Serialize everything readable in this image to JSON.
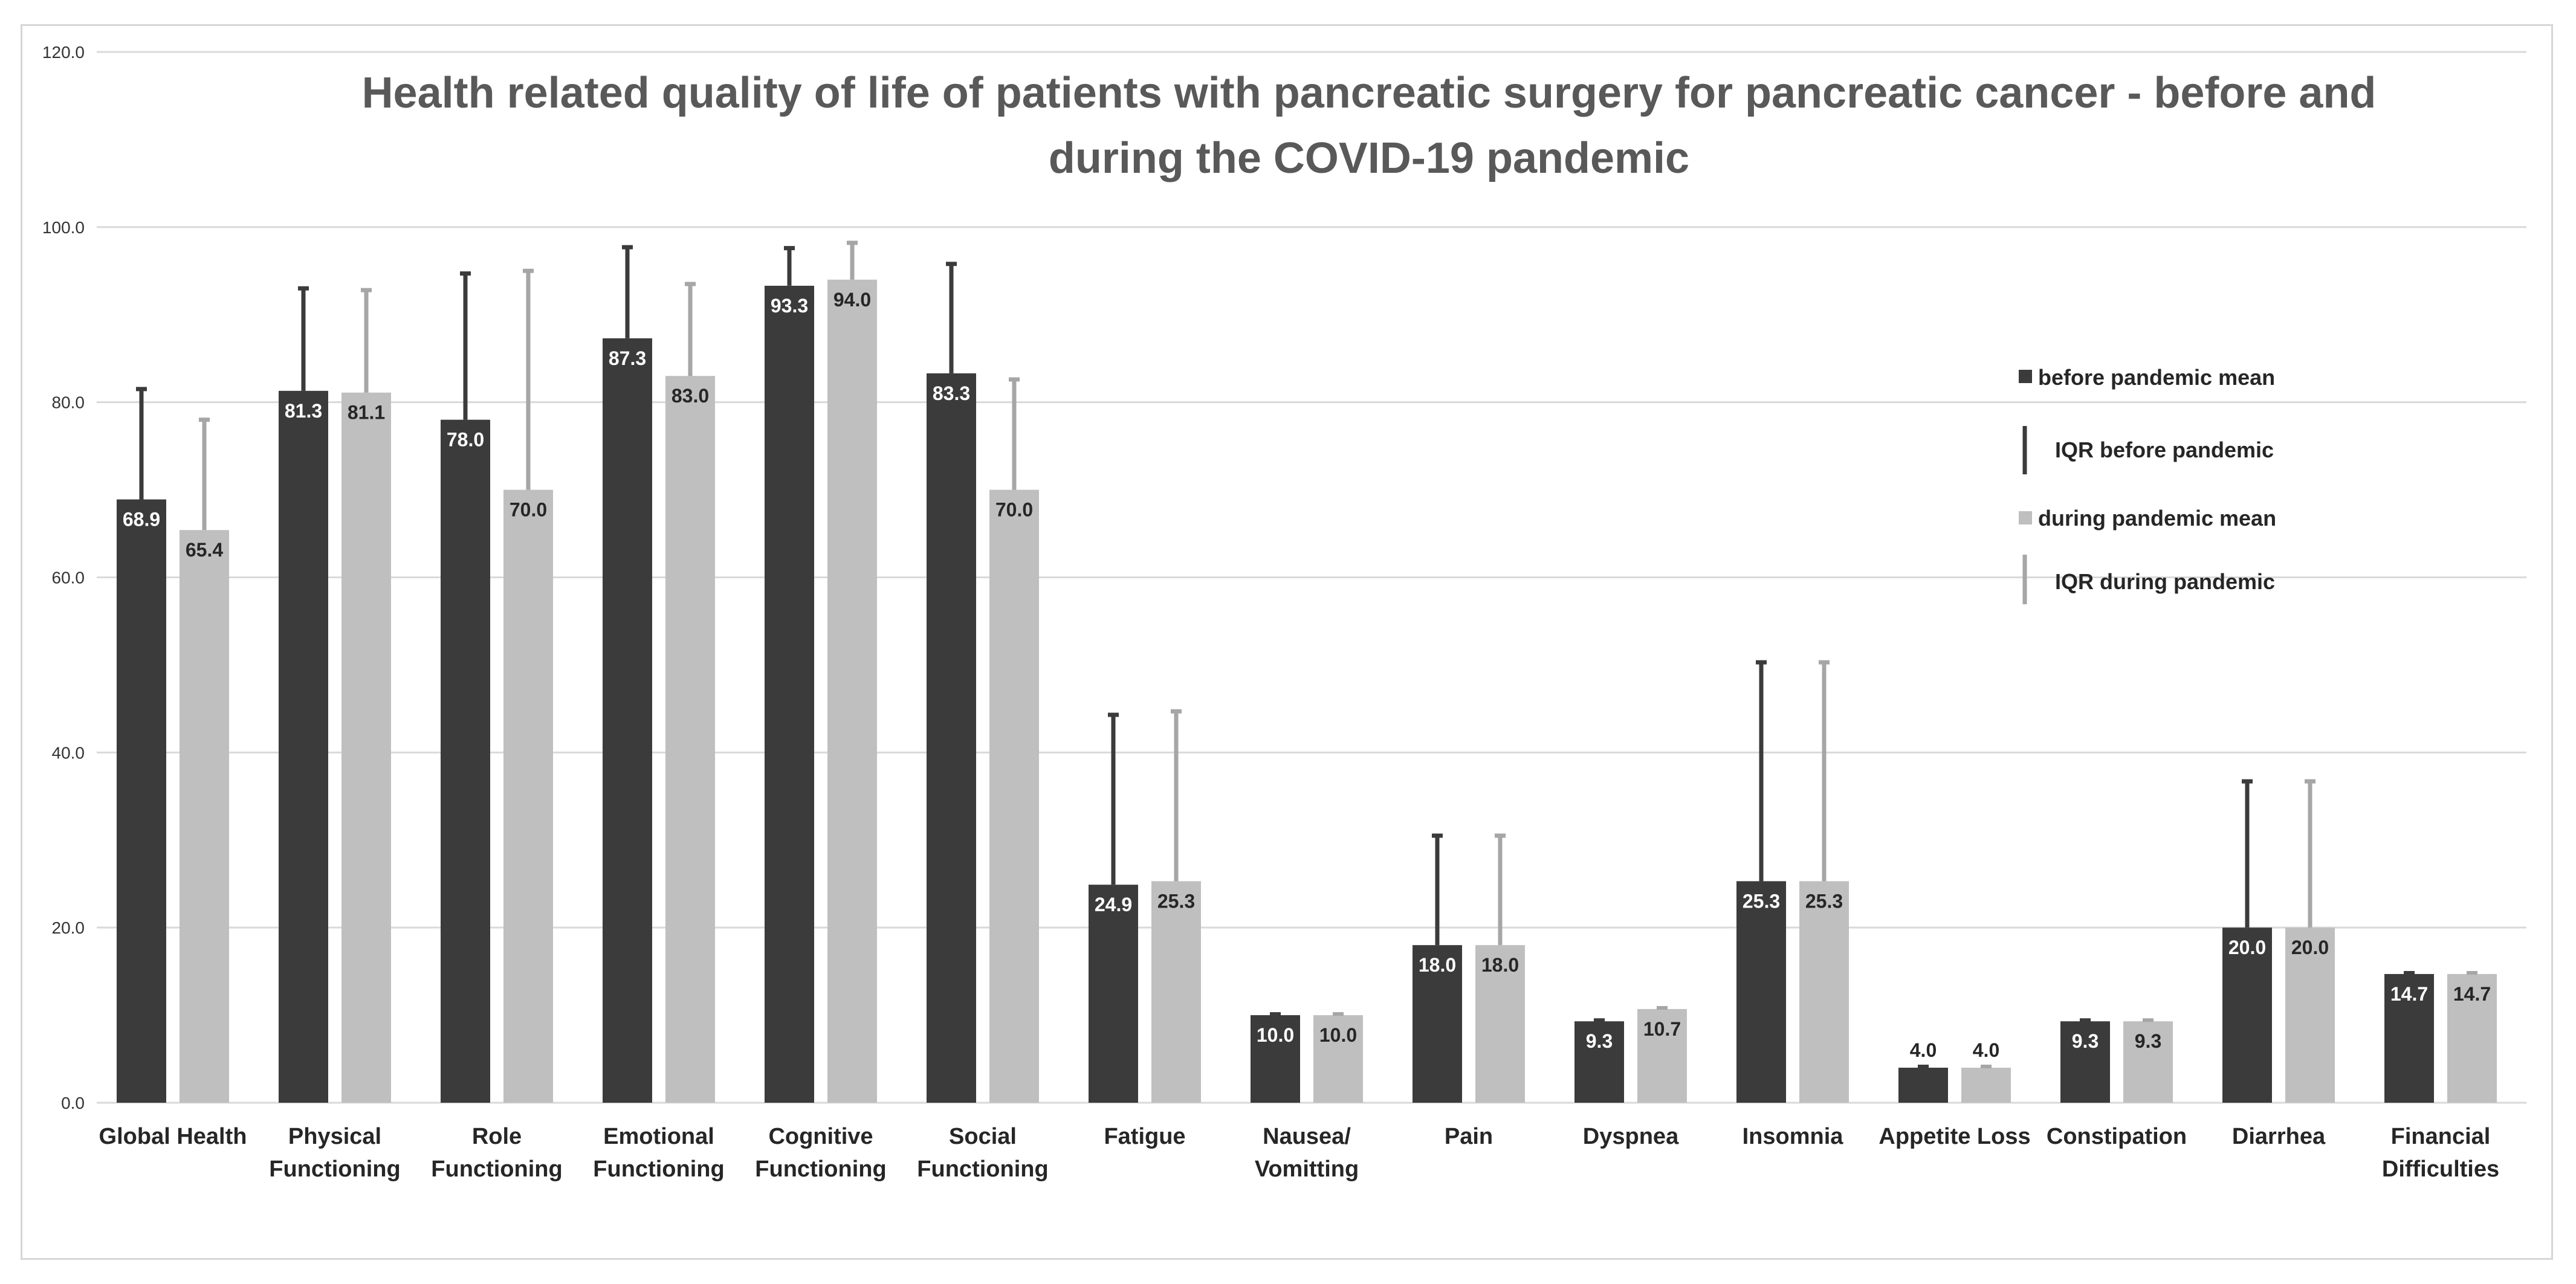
{
  "chart_data": {
    "type": "bar",
    "title": "Health related quality of life of patients with pancreatic surgery for pancreatic cancer - before and during the COVID-19 pandemic",
    "title_lines": [
      "Health related quality of life of patients with pancreatic surgery for pancreatic cancer - before and",
      "during the COVID-19 pandemic"
    ],
    "xlabel": "",
    "ylabel": "",
    "ylim": [
      0,
      120
    ],
    "yticks": [
      "0.0",
      "20.0",
      "40.0",
      "60.0",
      "80.0",
      "100.0",
      "120.0"
    ],
    "grid": true,
    "legend_position": "right",
    "categories": [
      [
        "Global Health"
      ],
      [
        "Physical",
        "Functioning"
      ],
      [
        "Role",
        "Functioning"
      ],
      [
        "Emotional",
        "Functioning"
      ],
      [
        "Cognitive",
        "Functioning"
      ],
      [
        "Social",
        "Functioning"
      ],
      [
        "Fatigue"
      ],
      [
        "Nausea/",
        "Vomitting"
      ],
      [
        "Pain"
      ],
      [
        "Dyspnea"
      ],
      [
        "Insomnia"
      ],
      [
        "Appetite Loss"
      ],
      [
        "Constipation"
      ],
      [
        "Diarrhea"
      ],
      [
        "Financial",
        "Difficulties"
      ]
    ],
    "series": [
      {
        "name": "before pandemic mean",
        "color": "#3b3b3b",
        "values": [
          68.9,
          81.3,
          78.0,
          87.3,
          93.3,
          83.3,
          24.9,
          10.0,
          18.0,
          9.3,
          25.3,
          4.0,
          9.3,
          20.0,
          14.7
        ],
        "labels": [
          "68.9",
          "81.3",
          "78.0",
          "87.3",
          "93.3",
          "83.3",
          "24.9",
          "10.0",
          "18.0",
          "9.3",
          "25.3",
          "4.0",
          "9.3",
          "20.0",
          "14.7"
        ],
        "err_upper": [
          81.5,
          93.0,
          94.7,
          97.7,
          97.6,
          95.8,
          44.3,
          10.0,
          30.5,
          9.3,
          50.3,
          4.0,
          9.3,
          36.7,
          14.7
        ],
        "err_name": "IQR before pandemic"
      },
      {
        "name": "during pandemic mean",
        "color": "#bfbfbf",
        "values": [
          65.4,
          81.1,
          70.0,
          83.0,
          94.0,
          70.0,
          25.3,
          10.0,
          18.0,
          10.7,
          25.3,
          4.0,
          9.3,
          20.0,
          14.7
        ],
        "labels": [
          "65.4",
          "81.1",
          "70.0",
          "83.0",
          "94.0",
          "70.0",
          "25.3",
          "10.0",
          "18.0",
          "10.7",
          "25.3",
          "4.0",
          "9.3",
          "20.0",
          "14.7"
        ],
        "err_upper": [
          78.0,
          92.8,
          95.0,
          93.5,
          98.2,
          82.6,
          44.7,
          10.0,
          30.5,
          10.7,
          50.3,
          4.0,
          9.3,
          36.7,
          14.7
        ],
        "err_name": "IQR during pandemic"
      }
    ],
    "value_label_colors": {
      "inside_dark": "#ffffff",
      "inside_light": "#262626",
      "outside": "#262626"
    },
    "grid_color": "#d9d9d9"
  }
}
